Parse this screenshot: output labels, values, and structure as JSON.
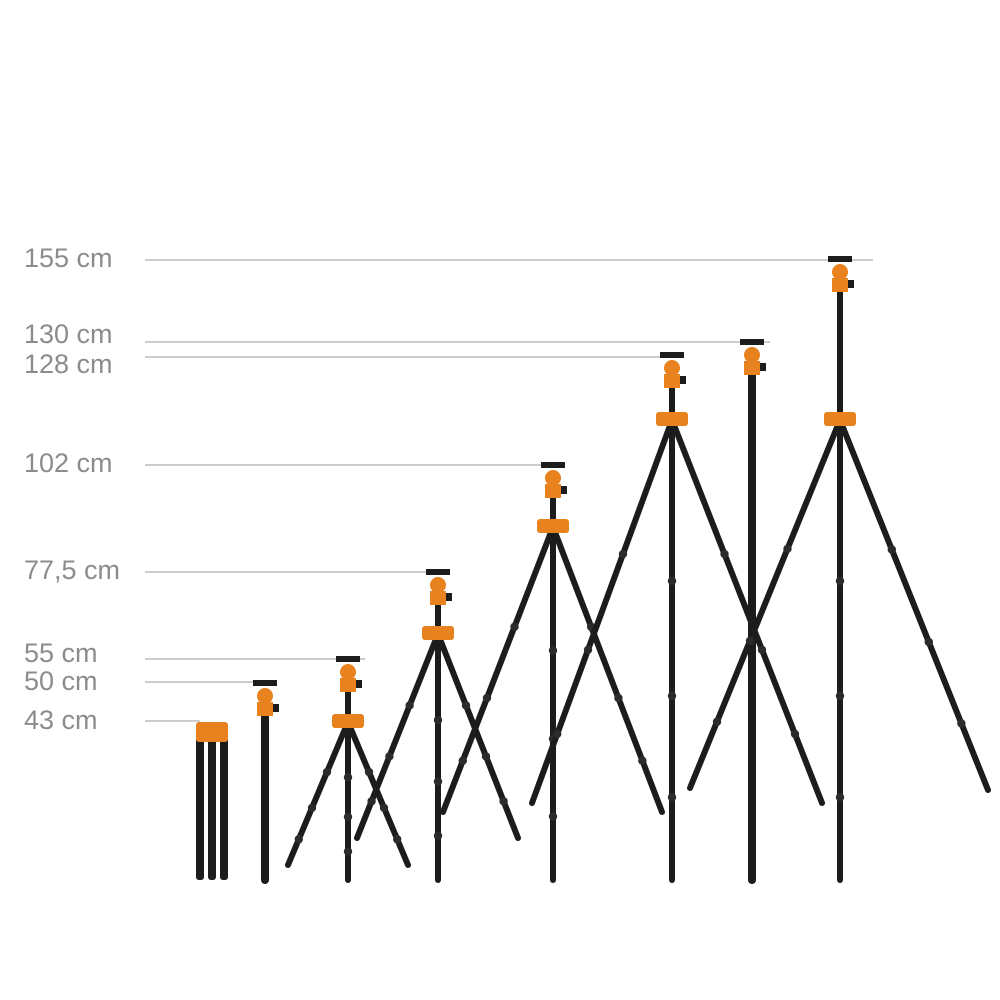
{
  "height_labels": [
    "155 cm",
    "130 cm",
    "128 cm",
    "102 cm",
    "77,5 cm",
    "55 cm",
    "50 cm",
    "43 cm"
  ]
}
